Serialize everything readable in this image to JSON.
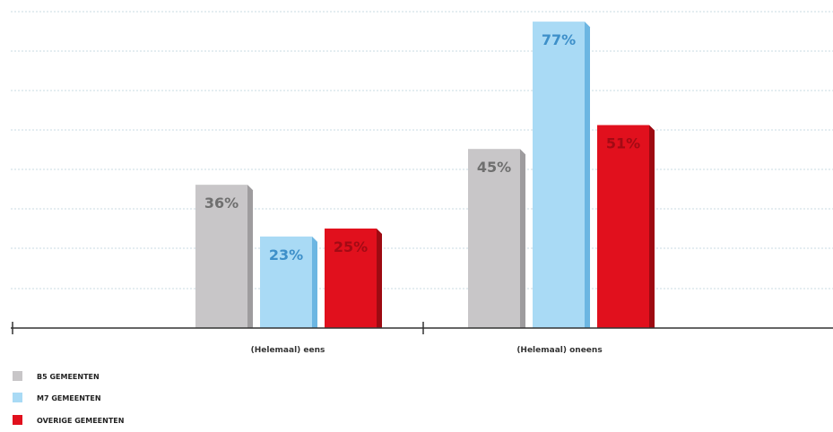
{
  "chart_data": {
    "type": "bar",
    "categories": [
      "(Helemaal) eens",
      "(Helemaal) oneens"
    ],
    "series": [
      {
        "name": "B5 GEMEENTEN",
        "values": [
          36,
          45
        ],
        "labels": [
          "36%",
          "45%"
        ],
        "color": "#c8c6c8",
        "shade": "#9e9c9e",
        "label_color": "#6f6f6f"
      },
      {
        "name": "M7 GEMEENTEN",
        "values": [
          23,
          77
        ],
        "labels": [
          "23%",
          "77%"
        ],
        "color": "#a9daf5",
        "shade": "#6cb6e2",
        "label_color": "#3d8fc9"
      },
      {
        "name": "OVERIGE GEMEENTEN",
        "values": [
          25,
          51
        ],
        "labels": [
          "25%",
          "51%"
        ],
        "color": "#e1101d",
        "shade": "#9e0a12",
        "label_color": "#a30a14"
      }
    ],
    "ylim": [
      0,
      80
    ],
    "grid": true,
    "legend_position": "bottom-left",
    "title": "",
    "xlabel": "",
    "ylabel": ""
  }
}
